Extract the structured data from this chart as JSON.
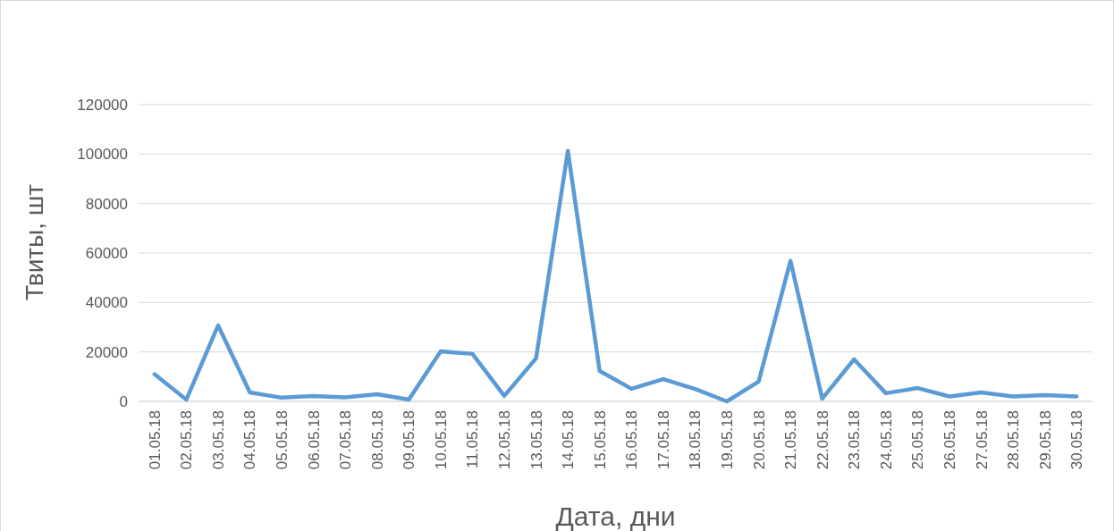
{
  "chart_data": {
    "type": "line",
    "xlabel": "Дата, дни",
    "ylabel": "Твиты, шт",
    "categories": [
      "01.05.18",
      "02.05.18",
      "03.05.18",
      "04.05.18",
      "05.05.18",
      "06.05.18",
      "07.05.18",
      "08.05.18",
      "09.05.18",
      "10.05.18",
      "11.05.18",
      "12.05.18",
      "13.05.18",
      "14.05.18",
      "15.05.18",
      "16.05.18",
      "17.05.18",
      "18.05.18",
      "19.05.18",
      "20.05.18",
      "21.05.18",
      "22.05.18",
      "23.05.18",
      "24.05.18",
      "25.05.18",
      "26.05.18",
      "27.05.18",
      "28.05.18",
      "29.05.18",
      "30.05.18"
    ],
    "series": [
      {
        "color": "#5b9bd5",
        "values": [
          11000,
          700,
          30700,
          3600,
          1500,
          2200,
          1600,
          2900,
          700,
          20200,
          19200,
          2200,
          17400,
          101300,
          12300,
          5100,
          9000,
          5000,
          0,
          8000,
          56800,
          1100,
          17000,
          3300,
          5400,
          2000,
          3600,
          2000,
          2500,
          2000
        ]
      }
    ],
    "ylim": [
      0,
      120000
    ],
    "yticks": [
      0,
      20000,
      40000,
      60000,
      80000,
      100000,
      120000
    ],
    "grid": "y",
    "marker": "none",
    "line_style": "solid"
  }
}
